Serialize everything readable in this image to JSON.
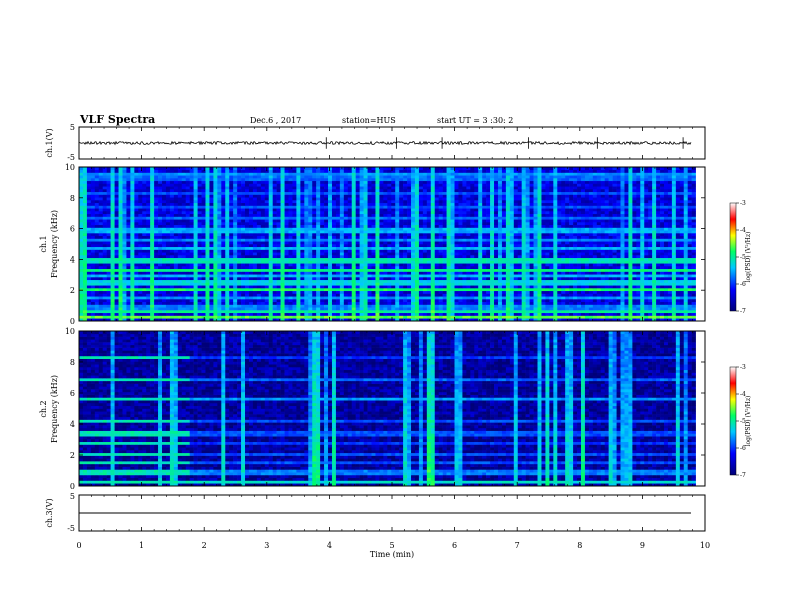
{
  "header": {
    "title": "VLF Spectra",
    "date": "Dec.6 , 2017",
    "station": "station=HUS",
    "start": "start  UT  =   3  :30: 2"
  },
  "chart_data": [
    {
      "type": "line",
      "name": "ch1-waveform",
      "ylabel": "ch.1(V)",
      "ylim": [
        -5,
        5
      ],
      "yticks": [
        "5",
        "-5"
      ],
      "xlim": [
        0,
        9.85
      ],
      "baseline": 0,
      "spikes_min": [
        3.95,
        5.07,
        5.8,
        7.18,
        8.28,
        9.65
      ],
      "color": "#000000"
    },
    {
      "type": "heatmap",
      "name": "ch1-spectrogram",
      "ylabel": "Frequency  (kHz)",
      "channel_label": "ch.1",
      "ylim": [
        0,
        10
      ],
      "yticks": [
        "0",
        "2",
        "4",
        "6",
        "8",
        "10"
      ],
      "xlim": [
        0,
        10
      ],
      "colorbar": {
        "label": "log(PSD) (V²/Hz)",
        "range": [
          -7,
          -3
        ],
        "ticks": [
          "-3",
          "-4",
          "-5",
          "-6",
          "-7"
        ]
      },
      "bands_khz": [
        {
          "f": 0.3,
          "v": -4.6
        },
        {
          "f": 0.6,
          "v": -5.0
        },
        {
          "f": 0.9,
          "v": -5.7
        },
        {
          "f": 1.5,
          "v": -5.6
        },
        {
          "f": 2.0,
          "v": -4.8
        },
        {
          "f": 2.5,
          "v": -5.3
        },
        {
          "f": 3.0,
          "v": -5.5
        },
        {
          "f": 3.3,
          "v": -4.9
        },
        {
          "f": 3.9,
          "v": -5.1
        },
        {
          "f": 4.7,
          "v": -5.5
        },
        {
          "f": 5.3,
          "v": -5.7
        },
        {
          "f": 5.9,
          "v": -5.5
        },
        {
          "f": 6.7,
          "v": -5.8
        },
        {
          "f": 7.4,
          "v": -5.9
        },
        {
          "f": 8.3,
          "v": -5.9
        },
        {
          "f": 9.3,
          "v": -5.8
        },
        {
          "f": 9.6,
          "v": -5.6
        }
      ],
      "background_level": -6.4,
      "sferic_density": "dense"
    },
    {
      "type": "heatmap",
      "name": "ch2-spectrogram",
      "ylabel": "Frequency  (kHz)",
      "channel_label": "ch.2",
      "ylim": [
        0,
        10
      ],
      "yticks": [
        "0",
        "2",
        "4",
        "6",
        "8",
        "10"
      ],
      "xlim": [
        0,
        10
      ],
      "colorbar": {
        "label": "log(PSD) (V²/Hz)",
        "range": [
          -7,
          -3
        ],
        "ticks": [
          "-3",
          "-4",
          "-5",
          "-6",
          "-7"
        ]
      },
      "bands_khz": [
        {
          "f": 0.3,
          "v": -5.2
        },
        {
          "f": 0.9,
          "v": -5.7
        },
        {
          "f": 1.5,
          "v": -5.9
        },
        {
          "f": 2.1,
          "v": -5.9
        },
        {
          "f": 2.8,
          "v": -6.0
        },
        {
          "f": 3.4,
          "v": -5.9
        },
        {
          "f": 4.2,
          "v": -5.9
        },
        {
          "f": 5.6,
          "v": -5.6
        },
        {
          "f": 6.9,
          "v": -5.8
        },
        {
          "f": 8.3,
          "v": -6.0
        }
      ],
      "strong_bands_until_min": 1.75,
      "strong_band_level": -5.1,
      "background_level": -6.8,
      "burst_intervals_min": [
        [
          3.55,
          4.15
        ],
        [
          5.35,
          5.75
        ],
        [
          7.6,
          8.05
        ],
        [
          8.4,
          8.75
        ]
      ],
      "sferic_density": "clustered"
    },
    {
      "type": "line",
      "name": "ch3-waveform",
      "ylabel": "ch.3(V)",
      "ylim": [
        -5,
        5
      ],
      "yticks": [
        "5",
        "-5"
      ],
      "xlim": [
        0,
        9.85
      ],
      "baseline": -1,
      "color": "#000000"
    }
  ],
  "xaxis": {
    "label": "Time  (min)",
    "ticks": [
      "0",
      "1",
      "2",
      "3",
      "4",
      "5",
      "6",
      "7",
      "8",
      "9",
      "10"
    ],
    "range": [
      0,
      10
    ]
  }
}
